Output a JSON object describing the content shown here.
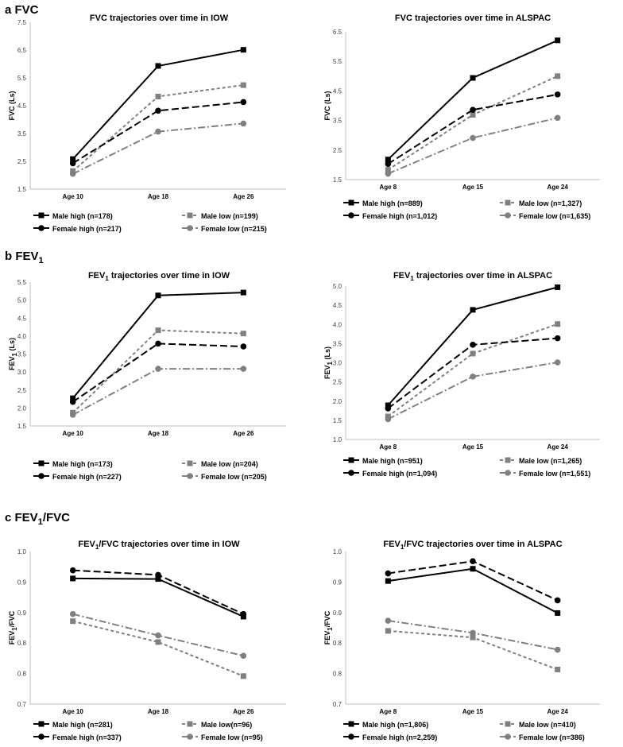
{
  "sections": [
    {
      "letter": "a",
      "name": "FVC",
      "name_sub": ""
    },
    {
      "letter": "b",
      "name": "FEV",
      "name_sub": "1"
    },
    {
      "letter": "c",
      "name": "FEV",
      "name_sub": "1",
      "name_suffix": "/FVC"
    }
  ],
  "series_styles": {
    "Male high": {
      "color": "#000000",
      "dash": "solid",
      "marker": "square"
    },
    "Male low": {
      "color": "#808080",
      "dash": "short-dash",
      "marker": "square"
    },
    "Female high": {
      "color": "#000000",
      "dash": "long-dash",
      "marker": "circle"
    },
    "Female low": {
      "color": "#808080",
      "dash": "dash-dot",
      "marker": "circle"
    }
  },
  "chart_data": [
    {
      "id": "fvc-iow",
      "type": "line",
      "title_parts": [
        {
          "t": "FVC trajectories over time in IOW"
        }
      ],
      "ylabel_parts": [
        {
          "t": "FVC (Ls)"
        }
      ],
      "categories": [
        "Age 10",
        "Age 18",
        "Age 26"
      ],
      "ylim": [
        1.5,
        7.5
      ],
      "yticks": [
        "1.5",
        "2.5",
        "3.5",
        "4.5",
        "5.5",
        "6.5",
        "7.5"
      ],
      "series": [
        {
          "name": "Male high",
          "legend": "Male high (n=178)",
          "values": [
            2.58,
            5.93,
            6.51
          ]
        },
        {
          "name": "Male low",
          "legend": "Male low (n=199)",
          "values": [
            2.15,
            4.83,
            5.24
          ]
        },
        {
          "name": "Female high",
          "legend": "Female high (n=217)",
          "values": [
            2.43,
            4.32,
            4.63
          ]
        },
        {
          "name": "Female low",
          "legend": "Female low (n=215)",
          "values": [
            2.05,
            3.57,
            3.86
          ]
        }
      ]
    },
    {
      "id": "fvc-alspac",
      "type": "line",
      "title_parts": [
        {
          "t": "FVC trajectories over time in ALSPAC"
        }
      ],
      "ylabel_parts": [
        {
          "t": "FVC (Ls)"
        }
      ],
      "categories": [
        "Age 8",
        "Age  15",
        "Age 24"
      ],
      "ylim": [
        1.5,
        6.5
      ],
      "yticks": [
        "1.5",
        "2.5",
        "3.5",
        "4.5",
        "5.5",
        "6.5"
      ],
      "series": [
        {
          "name": "Male high",
          "legend": "Male high (n=889)",
          "values": [
            2.18,
            4.94,
            6.21
          ]
        },
        {
          "name": "Male low",
          "legend": "Male low (n=1,327)",
          "values": [
            1.83,
            3.69,
            5.0
          ]
        },
        {
          "name": "Female high",
          "legend": "Female high (n=1,012)",
          "values": [
            2.03,
            3.86,
            4.38
          ]
        },
        {
          "name": "Female low",
          "legend": "Female low (n=1,635)",
          "values": [
            1.7,
            2.91,
            3.59
          ]
        }
      ]
    },
    {
      "id": "fev1-iow",
      "type": "line",
      "title_parts": [
        {
          "t": "FEV"
        },
        {
          "t": "1",
          "sub": true
        },
        {
          "t": " trajectories over time in IOW"
        }
      ],
      "ylabel_parts": [
        {
          "t": "FEV"
        },
        {
          "t": "1",
          "sub": true
        },
        {
          "t": " (Ls)"
        }
      ],
      "categories": [
        "Age 10",
        "Age 18",
        "Age 26"
      ],
      "ylim": [
        1.5,
        5.5
      ],
      "yticks": [
        "1.5",
        "2.0",
        "2.5",
        "3.0",
        "3.5",
        "4.0",
        "4.5",
        "5.0",
        "5.5"
      ],
      "series": [
        {
          "name": "Male high",
          "legend": "Male high (n=173)",
          "values": [
            2.27,
            5.13,
            5.21
          ]
        },
        {
          "name": "Male low",
          "legend": "Male low (n=204)",
          "values": [
            1.87,
            4.16,
            4.07
          ]
        },
        {
          "name": "Female high",
          "legend": "Female high (n=227)",
          "values": [
            2.17,
            3.79,
            3.71
          ]
        },
        {
          "name": "Female low",
          "legend": "Female low (n=205)",
          "values": [
            1.81,
            3.09,
            3.09
          ]
        }
      ]
    },
    {
      "id": "fev1-alspac",
      "type": "line",
      "title_parts": [
        {
          "t": "FEV"
        },
        {
          "t": "1",
          "sub": true
        },
        {
          "t": " trajectories over time in ALSPAC"
        }
      ],
      "ylabel_parts": [
        {
          "t": "FEV"
        },
        {
          "t": "1",
          "sub": true
        },
        {
          "t": " (Ls)"
        }
      ],
      "categories": [
        "Age 8",
        "Age 15",
        "Age 24"
      ],
      "ylim": [
        1.0,
        5.0
      ],
      "yticks": [
        "1.0",
        "1.5",
        "2.0",
        "2.5",
        "3.0",
        "3.5",
        "4.0",
        "4.5",
        "5.0"
      ],
      "series": [
        {
          "name": "Male high",
          "legend": "Male high (n=951)",
          "values": [
            1.89,
            4.38,
            4.97
          ]
        },
        {
          "name": "Male low",
          "legend": "Male low (n=1,265)",
          "values": [
            1.6,
            3.24,
            4.01
          ]
        },
        {
          "name": "Female high",
          "legend": "Female high (n=1,094)",
          "values": [
            1.81,
            3.47,
            3.64
          ]
        },
        {
          "name": "Female low",
          "legend": "Female low (n=1,551)",
          "values": [
            1.53,
            2.64,
            3.01
          ]
        }
      ]
    },
    {
      "id": "ratio-iow",
      "type": "line",
      "title_parts": [
        {
          "t": "FEV"
        },
        {
          "t": "1",
          "sub": true
        },
        {
          "t": "/FVC trajectories over time  in IOW"
        }
      ],
      "ylabel_parts": [
        {
          "t": "FEV"
        },
        {
          "t": "1",
          "sub": true
        },
        {
          "t": "/FVC"
        }
      ],
      "categories": [
        "Age 10",
        "Age 18",
        "Age 26"
      ],
      "ylim": [
        0.7,
        1.0
      ],
      "yticks": [
        "0.7",
        "0.8",
        "0.8",
        "0.9",
        "0.9",
        "1.0"
      ],
      "series": [
        {
          "name": "Male high",
          "legend": "Male high (n=281)",
          "values": [
            0.947,
            0.946,
            0.872
          ]
        },
        {
          "name": "Male low",
          "legend": "Male low(n=96)",
          "values": [
            0.863,
            0.822,
            0.755
          ]
        },
        {
          "name": "Female high",
          "legend": "Female high (n=337)",
          "values": [
            0.963,
            0.954,
            0.877
          ]
        },
        {
          "name": "Female low",
          "legend": "Female low (n=95)",
          "values": [
            0.877,
            0.835,
            0.795
          ]
        }
      ]
    },
    {
      "id": "ratio-alspac",
      "type": "line",
      "title_parts": [
        {
          "t": "FEV"
        },
        {
          "t": "1",
          "sub": true
        },
        {
          "t": "/FVC trajectories over time  in ALSPAC"
        }
      ],
      "ylabel_parts": [
        {
          "t": "FEV"
        },
        {
          "t": "1",
          "sub": true
        },
        {
          "t": "/FVC"
        }
      ],
      "categories": [
        "Age 8",
        "Age 15",
        "Age 24"
      ],
      "ylim": [
        0.7,
        1.0
      ],
      "yticks": [
        "0.7",
        "0.8",
        "0.8",
        "0.9",
        "0.9",
        "1.0"
      ],
      "series": [
        {
          "name": "Male high",
          "legend": "Male high (n=1,806)",
          "values": [
            0.942,
            0.966,
            0.879
          ]
        },
        {
          "name": "Male low",
          "legend": "Male low (n=410)",
          "values": [
            0.844,
            0.831,
            0.768
          ]
        },
        {
          "name": "Female high",
          "legend": "Female high (n=2,259)",
          "values": [
            0.957,
            0.981,
            0.904
          ]
        },
        {
          "name": "Female low",
          "legend": "Female low (n=386)",
          "values": [
            0.864,
            0.84,
            0.807
          ]
        }
      ]
    }
  ]
}
